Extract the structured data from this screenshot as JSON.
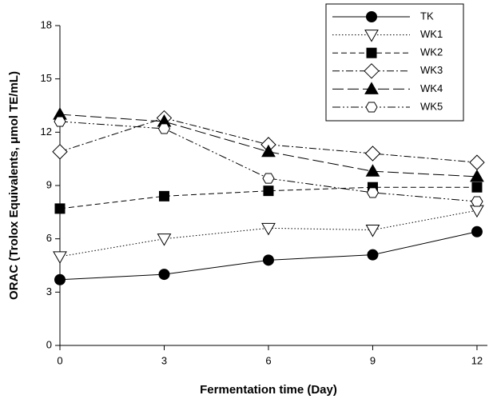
{
  "chart_data": {
    "type": "line",
    "x_label": "Fermentation time (Day)",
    "y_label": "ORAC (Trolox Equivalents, μmol TE/mL)",
    "x": [
      0,
      3,
      6,
      9,
      12
    ],
    "xlim": [
      0,
      12.3
    ],
    "xticks": [
      0,
      3,
      6,
      9,
      12
    ],
    "ylim": [
      0,
      18
    ],
    "yticks": [
      0,
      3,
      6,
      9,
      12,
      15,
      18
    ],
    "legend": "upper right",
    "series": [
      {
        "name": "TK",
        "color": "#000000",
        "marker": "circle",
        "filled": true,
        "line_style": "solid",
        "values": [
          3.7,
          4.0,
          4.8,
          5.1,
          6.4
        ]
      },
      {
        "name": "WK1",
        "color": "#000000",
        "marker": "triangle-down",
        "filled": false,
        "line_style": "dotted",
        "values": [
          5.0,
          6.0,
          6.6,
          6.5,
          7.6
        ]
      },
      {
        "name": "WK2",
        "color": "#000000",
        "marker": "square",
        "filled": true,
        "line_style": "dashed",
        "values": [
          7.7,
          8.4,
          8.7,
          8.9,
          8.9
        ]
      },
      {
        "name": "WK3",
        "color": "#000000",
        "marker": "diamond",
        "filled": false,
        "line_style": "dash-dot",
        "values": [
          10.9,
          12.8,
          11.3,
          10.8,
          10.3
        ]
      },
      {
        "name": "WK4",
        "color": "#000000",
        "marker": "triangle-up",
        "filled": true,
        "line_style": "long-dash",
        "values": [
          13.0,
          12.6,
          10.9,
          9.8,
          9.5
        ]
      },
      {
        "name": "WK5",
        "color": "#000000",
        "marker": "hexagon",
        "filled": false,
        "line_style": "dash-dot-dot",
        "values": [
          12.6,
          12.2,
          9.4,
          8.6,
          8.1
        ]
      }
    ]
  }
}
